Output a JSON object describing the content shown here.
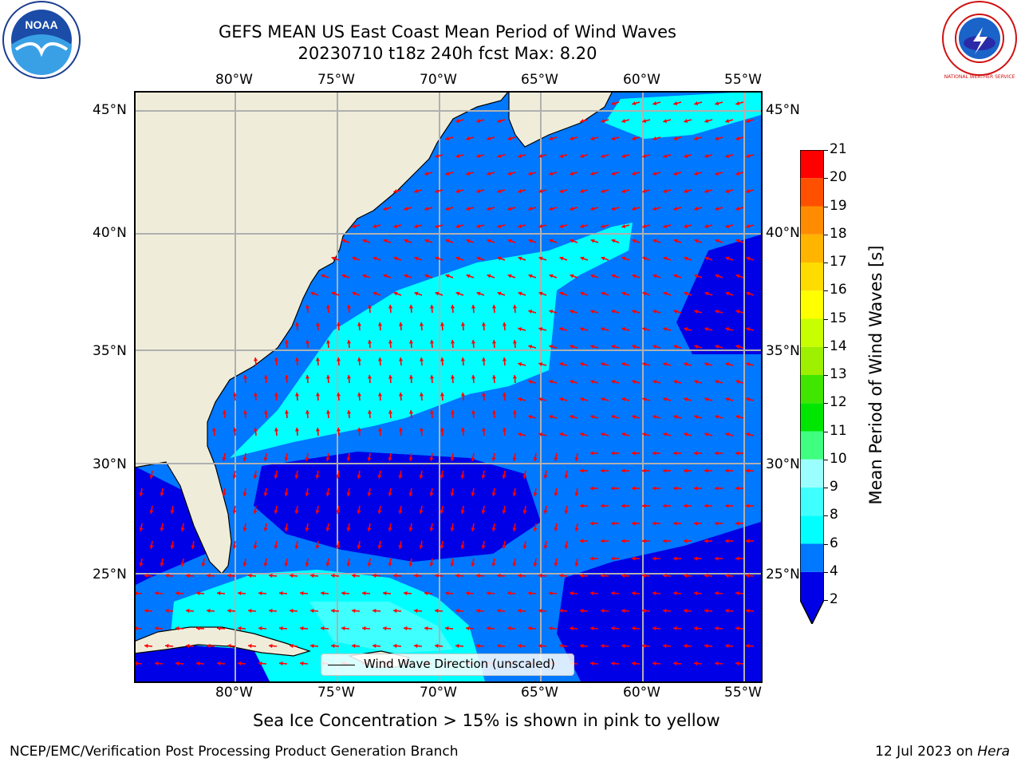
{
  "title": {
    "line1": "GEFS MEAN US East Coast Mean Period of Wind Waves",
    "line2": "20230710 t18z 240h fcst   Max: 8.20"
  },
  "map": {
    "lon_labels": [
      "80°W",
      "75°W",
      "70°W",
      "65°W",
      "60°W",
      "55°W"
    ],
    "lat_labels": [
      "45°N",
      "40°N",
      "35°N",
      "30°N",
      "25°N"
    ],
    "land_color": "#efedda",
    "legend_label": "Wind Wave Direction (unscaled)",
    "arrow_color": "#ff0000"
  },
  "colorbar": {
    "label": "Mean Period of Wind Waves [s]",
    "ticks": [
      "2",
      "4",
      "6",
      "8",
      "9",
      "10",
      "11",
      "12",
      "13",
      "14",
      "15",
      "16",
      "17",
      "18",
      "19",
      "20",
      "21"
    ],
    "colors": [
      "#0000e6",
      "#0078ff",
      "#00ffff",
      "#40ffff",
      "#9cffff",
      "#40ff80",
      "#00e600",
      "#40e600",
      "#9cf000",
      "#c8ff00",
      "#ffff00",
      "#ffdc00",
      "#ffb400",
      "#ff8c00",
      "#ff5000",
      "#ff0000"
    ],
    "under_color": "#0000e6"
  },
  "sea_ice_note": "Sea Ice Concentration > 15% is shown in pink to yellow",
  "footer": {
    "left": "NCEP/EMC/Verification Post Processing Product Generation Branch",
    "right_prefix": "12 Jul 2023 on ",
    "right_machine": "Hera"
  },
  "logos": {
    "noaa_text": "NOAA",
    "nws_text": "NATIONAL WEATHER SERVICE"
  }
}
